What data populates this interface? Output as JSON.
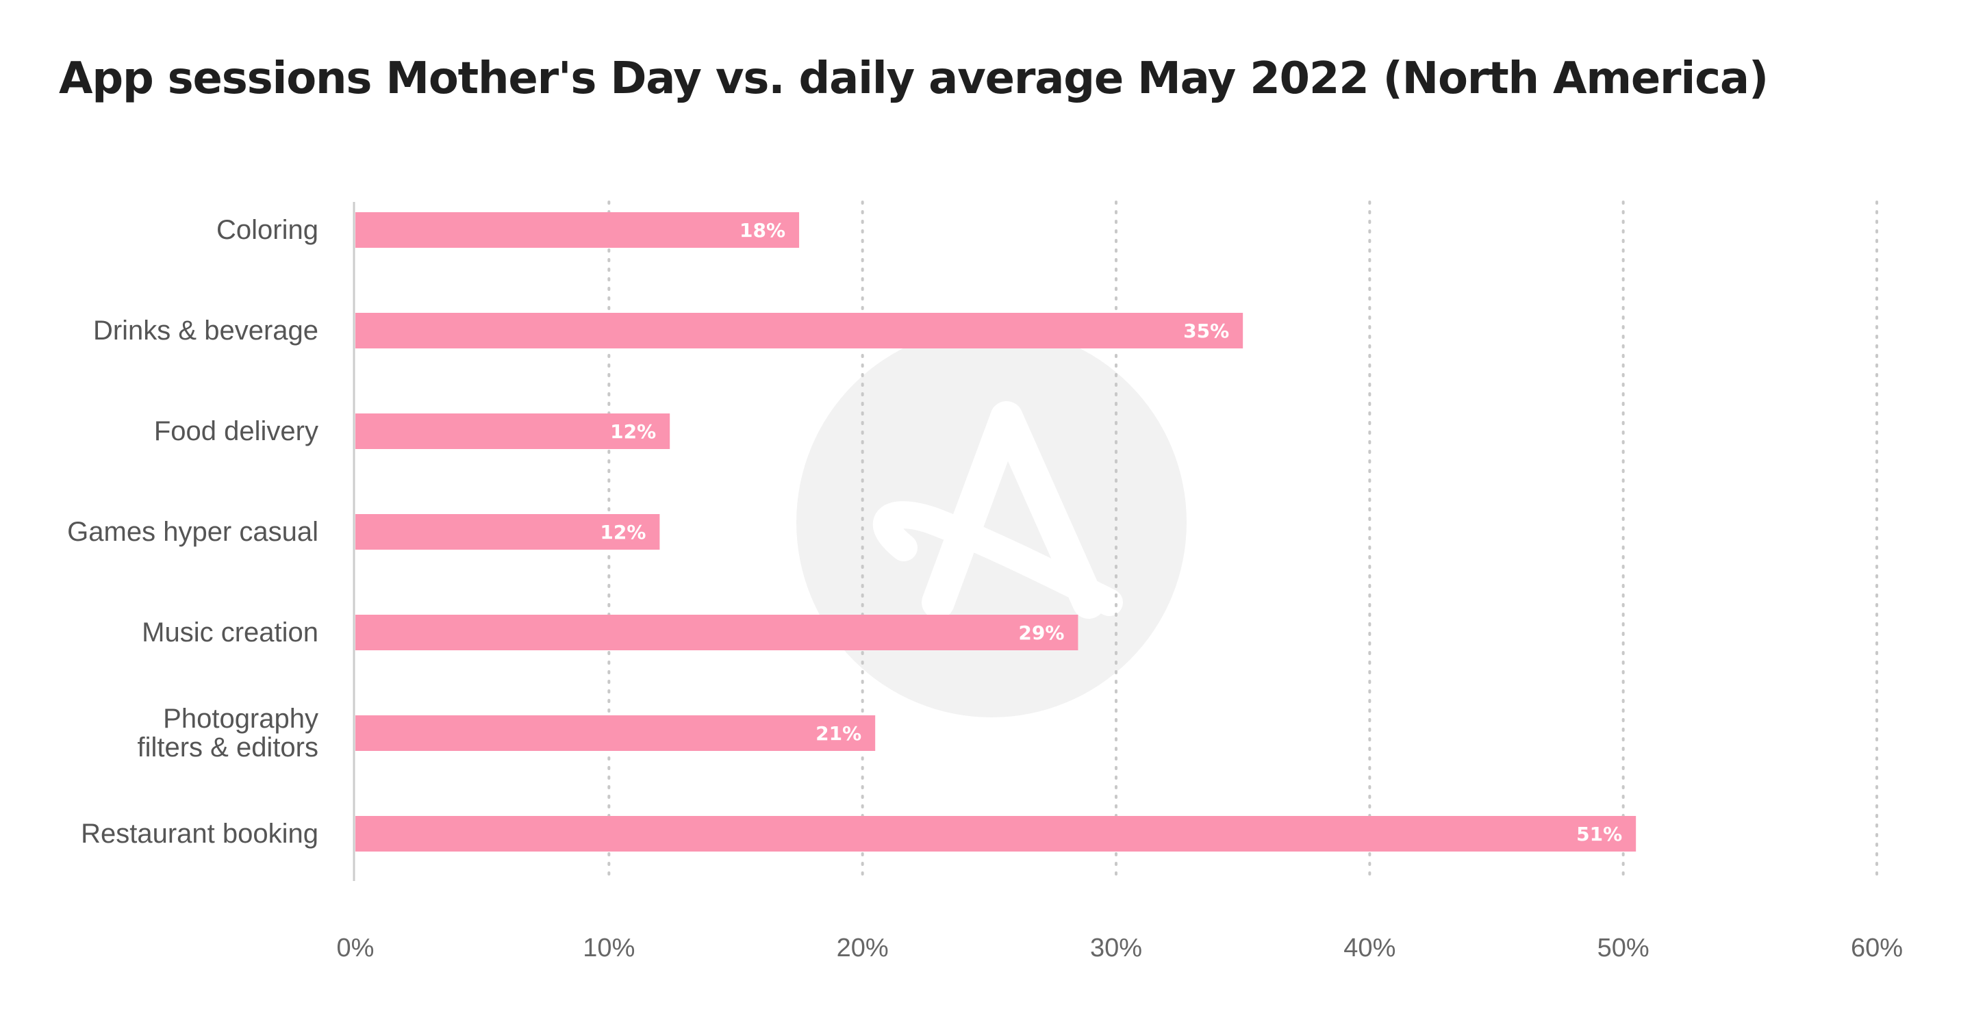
{
  "chart_data": {
    "type": "bar",
    "orientation": "horizontal",
    "title": "App sessions Mother's Day vs. daily average May 2022 (North America)",
    "categories": [
      [
        "Coloring"
      ],
      [
        "Drinks & beverage"
      ],
      [
        "Food delivery"
      ],
      [
        "Games hyper casual"
      ],
      [
        "Music creation"
      ],
      [
        "Photography",
        "filters & editors"
      ],
      [
        "Restaurant booking"
      ]
    ],
    "values": [
      17.5,
      35,
      12.4,
      12,
      28.5,
      20.5,
      50.5
    ],
    "data_labels": [
      "18%",
      "35%",
      "12%",
      "12%",
      "29%",
      "21%",
      "51%"
    ],
    "xlim": [
      0,
      60
    ],
    "x_ticks": [
      0,
      10,
      20,
      30,
      40,
      50,
      60
    ],
    "x_tick_labels": [
      "0%",
      "10%",
      "20%",
      "30%",
      "40%",
      "50%",
      "60%"
    ],
    "grid": "vertical dotted",
    "bar_color": "#fb94b0",
    "watermark": "adjust-logo"
  }
}
